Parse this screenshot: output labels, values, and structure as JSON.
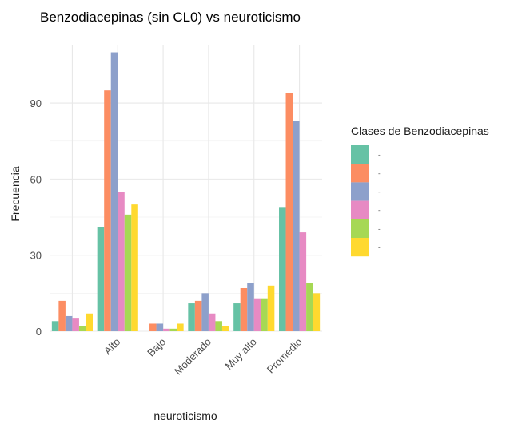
{
  "chart_data": {
    "type": "bar",
    "title": "Benzodiacepinas (sin CL0) vs neuroticismo",
    "xlabel": "neuroticismo",
    "ylabel": "Frecuencia",
    "categories": [
      "",
      "Alto",
      "Bajo",
      "Moderado",
      "Muy alto",
      "Promedio"
    ],
    "ylim": [
      0,
      113
    ],
    "yticks": [
      0,
      30,
      60,
      90
    ],
    "grid": true,
    "legend": {
      "title": "Clases de Benzodiacepinas",
      "position": "right"
    },
    "series": [
      {
        "label": "-",
        "color": "#66C2A5",
        "values": [
          4,
          41,
          0,
          11,
          11,
          49
        ]
      },
      {
        "label": "-",
        "color": "#FC8D62",
        "values": [
          12,
          95,
          3,
          12,
          17,
          94
        ]
      },
      {
        "label": "-",
        "color": "#8DA0CB",
        "values": [
          6,
          110,
          3,
          15,
          19,
          83
        ]
      },
      {
        "label": "-",
        "color": "#E78AC3",
        "values": [
          5,
          55,
          1,
          7,
          13,
          39
        ]
      },
      {
        "label": "-",
        "color": "#A6D854",
        "values": [
          2,
          46,
          1,
          4,
          13,
          19
        ]
      },
      {
        "label": "-",
        "color": "#FFD92F",
        "values": [
          7,
          50,
          3,
          2,
          18,
          15
        ]
      }
    ]
  }
}
